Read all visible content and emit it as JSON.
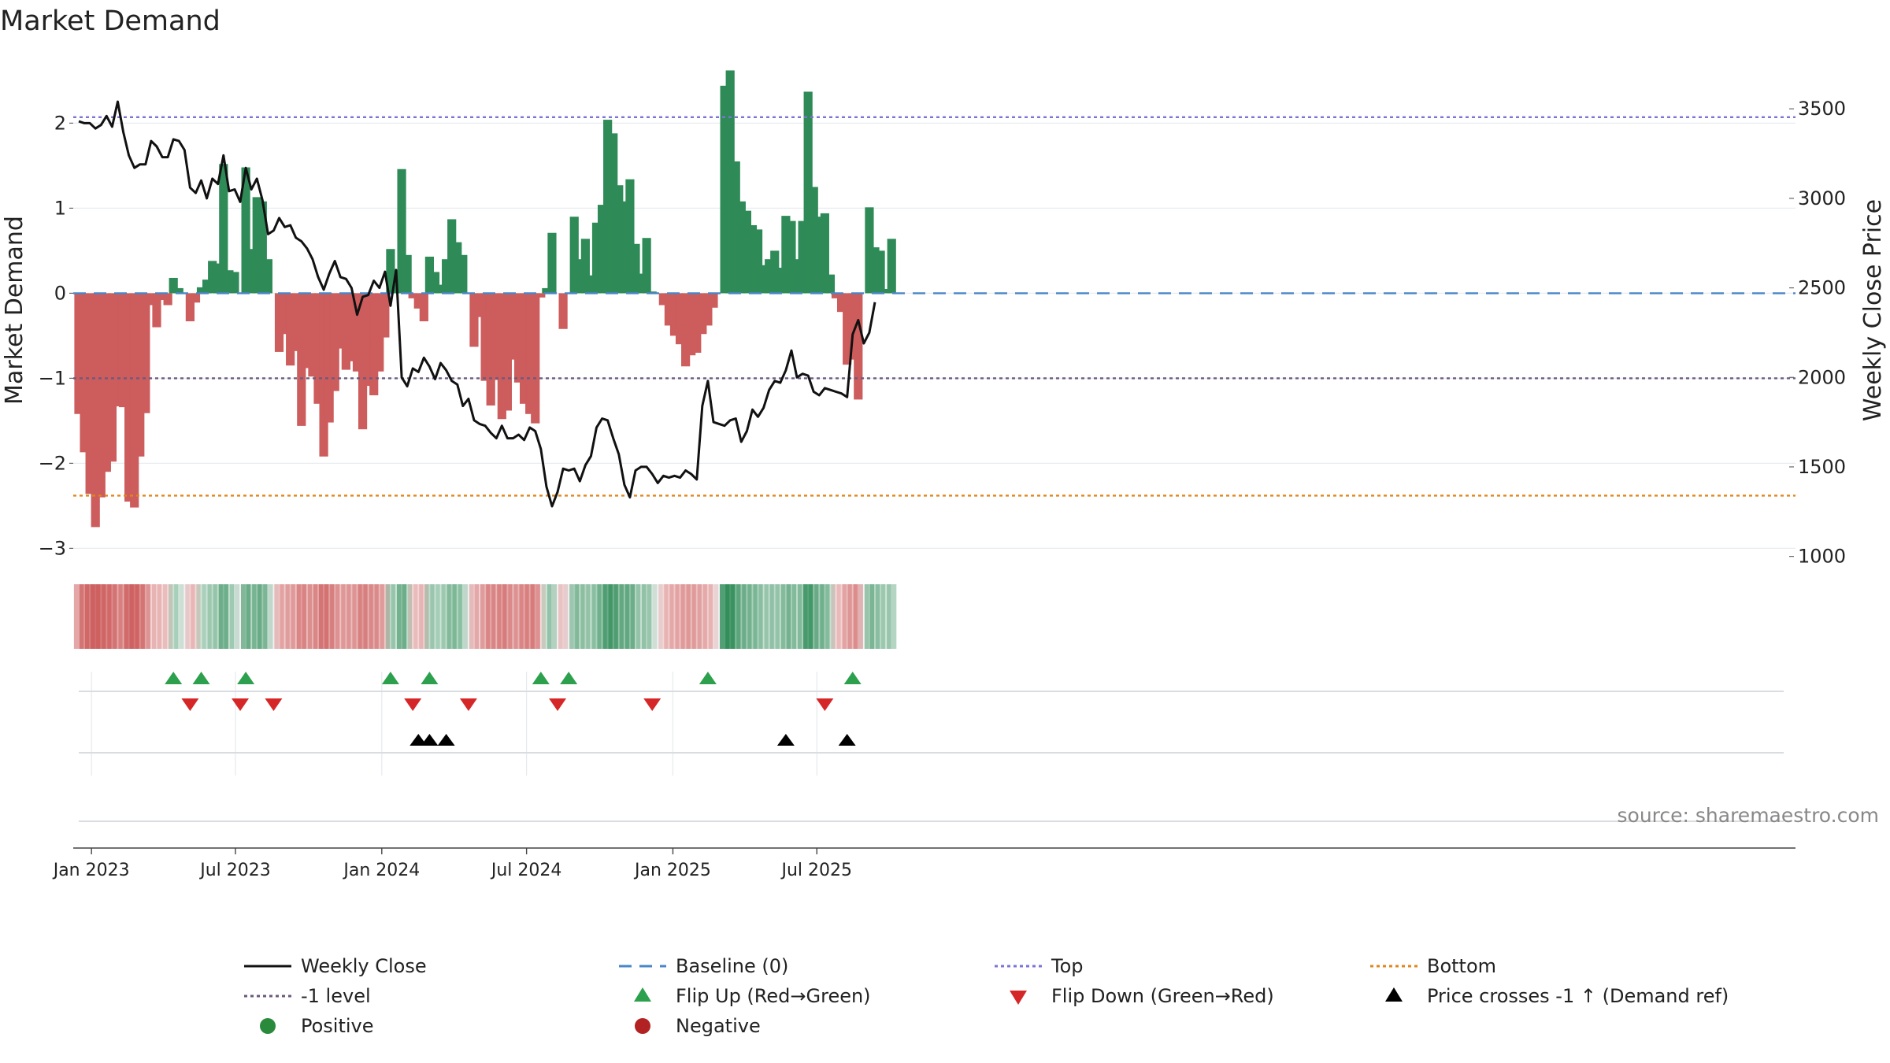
{
  "title": "Market Demand",
  "source": "source: sharemaestro.com",
  "chart_data": {
    "type": "bar+line",
    "title": "Market Demand",
    "ylabel_left": "Market Demand",
    "ylabel_right": "Weekly Close Price",
    "ylim_left": [
      -3.2,
      2.8
    ],
    "ylim_right": [
      950,
      3800
    ],
    "yticks_left": [
      2,
      1,
      0,
      -1,
      -2,
      -3
    ],
    "ytick_labels_left": [
      "2",
      "1",
      "0",
      "−1",
      "−2",
      "−3"
    ],
    "yticks_right": [
      3500,
      3000,
      2500,
      2000,
      1500,
      1000
    ],
    "ytick_labels_right": [
      "3500",
      "3000",
      "2500",
      "2000",
      "1500",
      "1000"
    ],
    "x_start": "2022-12-16",
    "x_step_days": 7,
    "x_ticks": [
      {
        "label": "Jan 2023",
        "date": "2023-01-01"
      },
      {
        "label": "Jul 2023",
        "date": "2023-07-01"
      },
      {
        "label": "Jan 2024",
        "date": "2024-01-01"
      },
      {
        "label": "Jul 2024",
        "date": "2024-07-01"
      },
      {
        "label": "Jan 2025",
        "date": "2025-01-01"
      },
      {
        "label": "Jul 2025",
        "date": "2025-07-01"
      }
    ],
    "reference_lines": {
      "baseline": 0,
      "top": 2.07,
      "bottom": -2.38,
      "minus_one": -1
    },
    "demand": [
      -1.42,
      -1.87,
      -2.36,
      -2.75,
      -2.4,
      -2.1,
      -1.98,
      -1.33,
      -1.34,
      -2.45,
      -2.52,
      -1.92,
      -1.41,
      -0.14,
      -0.4,
      -0.08,
      -0.14,
      0.18,
      0.06,
      0.0,
      -0.33,
      -0.11,
      0.07,
      0.16,
      0.38,
      0.35,
      1.52,
      0.27,
      0.25,
      0.0,
      1.48,
      0.52,
      1.13,
      1.08,
      0.4,
      0.0,
      -0.69,
      -0.48,
      -0.85,
      -0.68,
      -1.56,
      -0.88,
      -0.98,
      -1.3,
      -1.92,
      -1.52,
      -1.15,
      -0.65,
      -0.9,
      -0.8,
      -0.92,
      -1.6,
      -1.09,
      -1.2,
      -0.92,
      -0.52,
      0.52,
      0.18,
      1.46,
      0.45,
      -0.06,
      -0.18,
      -0.33,
      0.43,
      0.25,
      0.1,
      0.4,
      0.87,
      0.6,
      0.45,
      0.0,
      -0.63,
      -0.28,
      -1.03,
      -1.32,
      -1.02,
      -1.48,
      -1.38,
      -0.78,
      -1.05,
      -1.3,
      -1.42,
      -1.53,
      -0.05,
      0.06,
      0.71,
      0.0,
      -0.42,
      0.0,
      0.9,
      0.4,
      0.64,
      0.21,
      0.83,
      1.04,
      2.04,
      1.88,
      1.27,
      1.08,
      1.34,
      0.58,
      0.23,
      0.65,
      0.02,
      0.0,
      -0.14,
      -0.38,
      -0.5,
      -0.6,
      -0.86,
      -0.73,
      -0.7,
      -0.48,
      -0.38,
      -0.17,
      0.0,
      2.44,
      2.62,
      1.55,
      1.08,
      0.97,
      0.8,
      0.75,
      0.33,
      0.4,
      0.5,
      0.3,
      0.91,
      0.85,
      0.4,
      0.85,
      2.37,
      1.25,
      0.9,
      0.94,
      0.22,
      -0.06,
      -0.22,
      -0.84,
      -0.78,
      -1.25,
      0.0,
      1.01,
      0.54,
      0.5,
      0.05,
      0.64
    ],
    "weekly_close": [
      3430,
      3420,
      3420,
      3390,
      3410,
      3460,
      3400,
      3540,
      3370,
      3240,
      3170,
      3190,
      3190,
      3320,
      3290,
      3230,
      3230,
      3330,
      3320,
      3270,
      3060,
      3030,
      3100,
      3000,
      3110,
      3080,
      3240,
      3040,
      3050,
      2980,
      3170,
      3050,
      3110,
      2990,
      2800,
      2820,
      2890,
      2840,
      2850,
      2780,
      2760,
      2720,
      2660,
      2560,
      2490,
      2580,
      2650,
      2560,
      2550,
      2500,
      2350,
      2450,
      2460,
      2540,
      2500,
      2590,
      2400,
      2600,
      2000,
      1950,
      2050,
      2030,
      2110,
      2060,
      1990,
      2080,
      2040,
      1980,
      1960,
      1840,
      1880,
      1760,
      1740,
      1730,
      1690,
      1660,
      1730,
      1660,
      1660,
      1680,
      1650,
      1720,
      1700,
      1600,
      1390,
      1280,
      1360,
      1490,
      1480,
      1490,
      1420,
      1510,
      1560,
      1720,
      1770,
      1760,
      1660,
      1570,
      1400,
      1330,
      1480,
      1500,
      1500,
      1460,
      1410,
      1450,
      1440,
      1450,
      1440,
      1480,
      1460,
      1430,
      1840,
      1980,
      1750,
      1740,
      1730,
      1760,
      1770,
      1640,
      1700,
      1820,
      1780,
      1830,
      1930,
      1980,
      1970,
      2040,
      2150,
      2000,
      2020,
      2010,
      1920,
      1900,
      1940,
      1930,
      1920,
      1910,
      1890,
      2240,
      2320,
      2190,
      2250,
      2420
    ],
    "flip_up_weeks": [
      17,
      22,
      30,
      56,
      63,
      83,
      88,
      113,
      139
    ],
    "flip_down_weeks": [
      20,
      29,
      35,
      60,
      70,
      86,
      103,
      134
    ],
    "price_cross_weeks": [
      61,
      63,
      66,
      127,
      138
    ]
  },
  "legend": [
    {
      "label": "Weekly Close",
      "kind": "line-solid",
      "color": "#111111"
    },
    {
      "label": "Baseline (0)",
      "kind": "line-dash",
      "color": "#4a86c8"
    },
    {
      "label": "Top",
      "kind": "line-dot",
      "color": "#7b74d6"
    },
    {
      "label": "Bottom",
      "kind": "line-dot",
      "color": "#e0861a"
    },
    {
      "label": "-1 level",
      "kind": "line-dot",
      "color": "#6b5a7e"
    },
    {
      "label": "Flip Up (Red→Green)",
      "kind": "tri-up",
      "color": "#2ca04c"
    },
    {
      "label": "Flip Down (Green→Red)",
      "kind": "tri-down",
      "color": "#d62728"
    },
    {
      "label": "Price crosses -1 ↑ (Demand ref)",
      "kind": "tri-up",
      "color": "#000000"
    },
    {
      "label": "Positive",
      "kind": "dot",
      "color": "#2a8a3c"
    },
    {
      "label": "Negative",
      "kind": "dot",
      "color": "#b22222"
    }
  ],
  "colors": {
    "positive": "#2e8b57",
    "negative": "#cd5c5c",
    "price": "#111111",
    "baseline": "#4a86c8",
    "top": "#7b74d6",
    "bottom": "#e0861a",
    "minus_one": "#6b5a7e",
    "flip_up": "#2ca04c",
    "flip_down": "#d62728",
    "cross": "#000000"
  }
}
